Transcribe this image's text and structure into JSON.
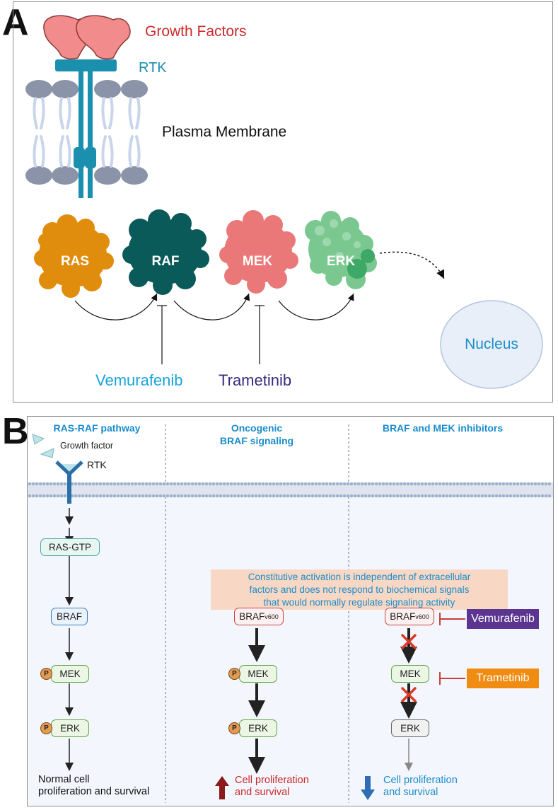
{
  "panel_a": {
    "letter": "A",
    "growth_factors": "Growth Factors",
    "rtk": "RTK",
    "plasma_membrane": "Plasma Membrane",
    "ras": "RAS",
    "raf": "RAF",
    "mek": "MEK",
    "erk": "ERK",
    "nucleus": "Nucleus",
    "vemurafenib": "Vemurafenib",
    "trametinib": "Trametinib",
    "colors": {
      "growth_factor": "#f28b8b",
      "rtk": "#1a8fae",
      "ras": "#e08d0e",
      "raf": "#0b5a5a",
      "mek": "#ea7878",
      "erk": "#58b878",
      "nucleus": "#e9eff9",
      "vemurafenib": "#1aa3d9",
      "trametinib": "#3a2a7e"
    }
  },
  "panel_b": {
    "letter": "B",
    "columns": [
      {
        "title": "RAS-RAF pathway"
      },
      {
        "title_line1": "Oncogenic",
        "title_line2": "BRAF signaling"
      },
      {
        "title": "BRAF and MEK inhibitors"
      }
    ],
    "growth_factor": "Growth factor",
    "rtk": "RTK",
    "note_line1": "Constitutive activation is independent of extracellular",
    "note_line2": "factors and does not respond to biochemical signals",
    "note_line3": "that would normally regulate signaling activity",
    "ras_gtp": "RAS-GTP",
    "braf": "BRAF",
    "braf_mut_base": "BRAF",
    "braf_mut_sup": "v600",
    "mek": "MEK",
    "erk": "ERK",
    "phospho": "P",
    "normal_line1": "Normal cell",
    "normal_line2": "proliferation and survival",
    "up_line1": "Cell proliferation",
    "up_line2": "and survival",
    "down_line1": "Cell proliferation",
    "down_line2": "and survival",
    "vemurafenib": "Vemurafenib",
    "trametinib": "Trametinib",
    "colors": {
      "title": "#1a8ccc",
      "note_bg": "#f8d8c4",
      "note_text": "#1a8ccc",
      "vemurafenib_bg": "#5b3590",
      "trametinib_bg": "#f08c12",
      "up_arrow": "#8b1a1a",
      "down_arrow": "#2f6db5",
      "up_text": "#c82a2a",
      "down_text": "#1a8ccc"
    }
  }
}
